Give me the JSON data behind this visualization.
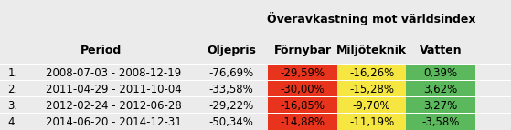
{
  "title": "Överavkastning mot världsindex",
  "col_headers": [
    "Period",
    "Oljepris",
    "Förnybar",
    "Miljöteknik",
    "Vatten"
  ],
  "rows": [
    {
      "num": "1.",
      "period": "2008-07-03 - 2008-12-19",
      "oljepris": "-76,69%",
      "fornybar": "-29,59%",
      "miljoteknik": "-16,26%",
      "vatten": "0,39%"
    },
    {
      "num": "2.",
      "period": "2011-04-29 - 2011-10-04",
      "oljepris": "-33,58%",
      "fornybar": "-30,00%",
      "miljoteknik": "-15,28%",
      "vatten": "3,62%"
    },
    {
      "num": "3.",
      "period": "2012-02-24 - 2012-06-28",
      "oljepris": "-29,22%",
      "fornybar": "-16,85%",
      "miljoteknik": "-9,70%",
      "vatten": "3,27%"
    },
    {
      "num": "4.",
      "period": "2014-06-20 - 2014-12-31",
      "oljepris": "-50,34%",
      "fornybar": "-14,88%",
      "miljoteknik": "-11,19%",
      "vatten": "-3,58%"
    }
  ],
  "cell_colors": {
    "fornybar": [
      "#e8341c",
      "#e8341c",
      "#e8341c",
      "#e8341c"
    ],
    "miljoteknik": [
      "#f5e642",
      "#f5e642",
      "#f5e642",
      "#f5e642"
    ],
    "vatten": [
      "#5cb85c",
      "#5cb85c",
      "#5cb85c",
      "#5cb85c"
    ]
  },
  "bg_color": "#ebebeb",
  "title_color": "#000000",
  "header_font_size": 9,
  "cell_font_size": 8.5
}
